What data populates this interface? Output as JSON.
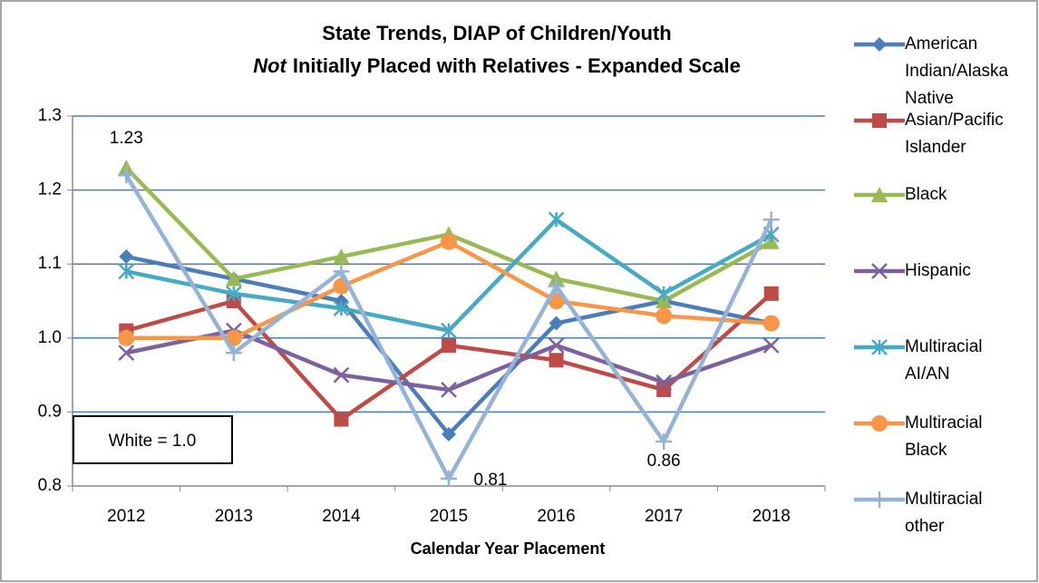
{
  "chart_data": {
    "type": "line",
    "title": "State Trends, DIAP of Children/Youth",
    "subtitle": [
      "Not",
      "Initially Placed with Relatives - Expanded Scale"
    ],
    "x_label": "Calendar Year Placement",
    "annotation": "White = 1.0",
    "categories": [
      "2012",
      "2013",
      "2014",
      "2015",
      "2016",
      "2017",
      "2018"
    ],
    "ylim": [
      0.8,
      1.3
    ],
    "yticks": [
      0.8,
      0.9,
      {
        "value": 1,
        "label": "1.0"
      },
      1.1,
      1.2,
      1.3
    ],
    "grid": true,
    "legend": "right",
    "series": [
      {
        "name": "American Indian/Alaska Native",
        "color": "#4a7ebb",
        "marker": "diamond",
        "values": [
          1.11,
          1.08,
          1.05,
          0.87,
          1.02,
          1.05,
          1.02
        ]
      },
      {
        "name": "Asian/Pacific Islander",
        "color": "#be4b48",
        "marker": "square",
        "values": [
          1.01,
          1.05,
          0.89,
          0.99,
          0.97,
          0.93,
          1.06
        ]
      },
      {
        "name": "Black",
        "color": "#98b954",
        "marker": "triangle",
        "values": [
          1.23,
          1.08,
          1.11,
          1.14,
          1.08,
          1.05,
          1.13
        ],
        "value_labels": [
          "1.23",
          null,
          null,
          null,
          null,
          null,
          null
        ]
      },
      {
        "name": "Hispanic",
        "color": "#7d60a0",
        "marker": "x",
        "values": [
          0.98,
          1.01,
          0.95,
          0.93,
          0.99,
          0.94,
          0.99
        ]
      },
      {
        "name": "Multiracial AI/AN",
        "color": "#46aac5",
        "marker": "star",
        "values": [
          1.09,
          1.06,
          1.04,
          1.01,
          1.16,
          1.06,
          1.14
        ]
      },
      {
        "name": "Multiracial Black",
        "color": "#f79646",
        "marker": "circle",
        "values": [
          1.0,
          1.0,
          1.07,
          1.13,
          1.05,
          1.03,
          1.02
        ]
      },
      {
        "name": "Multiracial other",
        "color": "#95b3d7",
        "marker": "plus",
        "values": [
          1.22,
          0.98,
          1.09,
          0.81,
          1.07,
          0.86,
          1.16
        ],
        "value_labels": [
          null,
          null,
          null,
          "0.81",
          null,
          "0.86",
          null
        ]
      }
    ]
  }
}
